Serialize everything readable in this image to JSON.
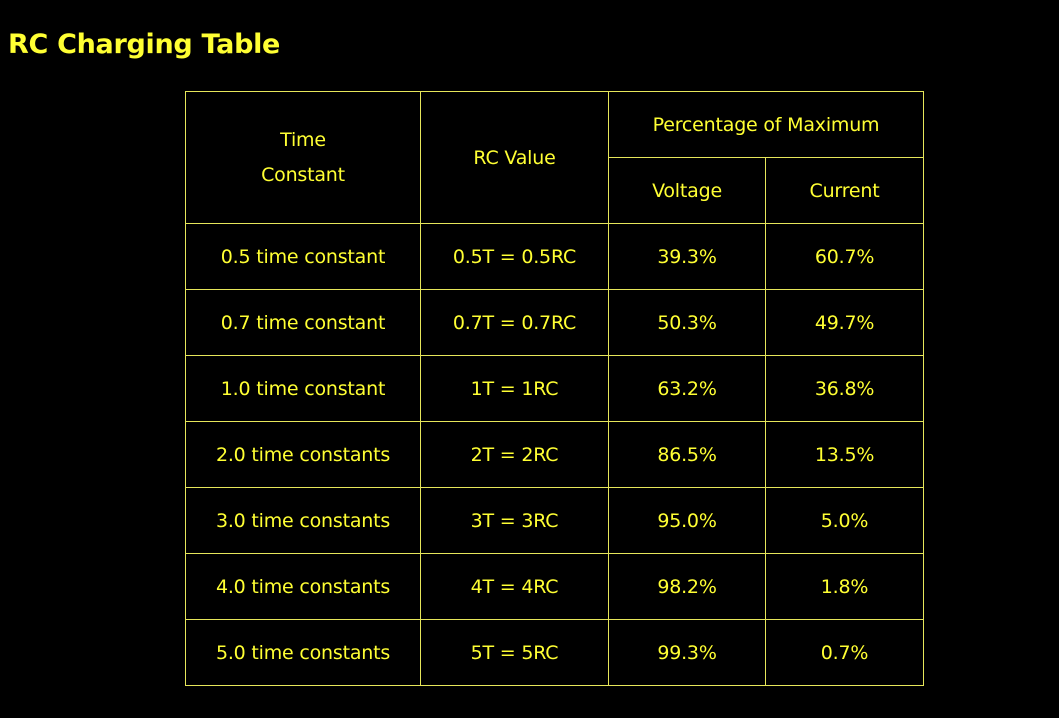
{
  "title": "RC Charging Table",
  "table": {
    "headers": {
      "time_line1": "Time",
      "time_line2": "Constant",
      "rc_value": "RC Value",
      "percentage": "Percentage of Maximum",
      "voltage": "Voltage",
      "current": "Current"
    },
    "rows": [
      {
        "time": "0.5 time constant",
        "rc": "0.5T = 0.5RC",
        "voltage": "39.3%",
        "current": "60.7%"
      },
      {
        "time": "0.7 time constant",
        "rc": "0.7T = 0.7RC",
        "voltage": "50.3%",
        "current": "49.7%"
      },
      {
        "time": "1.0 time constant",
        "rc": "1T = 1RC",
        "voltage": "63.2%",
        "current": "36.8%"
      },
      {
        "time": "2.0 time constants",
        "rc": "2T = 2RC",
        "voltage": "86.5%",
        "current": "13.5%"
      },
      {
        "time": "3.0 time constants",
        "rc": "3T = 3RC",
        "voltage": "95.0%",
        "current": "5.0%"
      },
      {
        "time": "4.0 time constants",
        "rc": "4T = 4RC",
        "voltage": "98.2%",
        "current": "1.8%"
      },
      {
        "time": "5.0 time constants",
        "rc": "5T = 5RC",
        "voltage": "99.3%",
        "current": "0.7%"
      }
    ]
  },
  "colors": {
    "background": "#000000",
    "text": "#ffff33",
    "border": "#e6e65a"
  }
}
